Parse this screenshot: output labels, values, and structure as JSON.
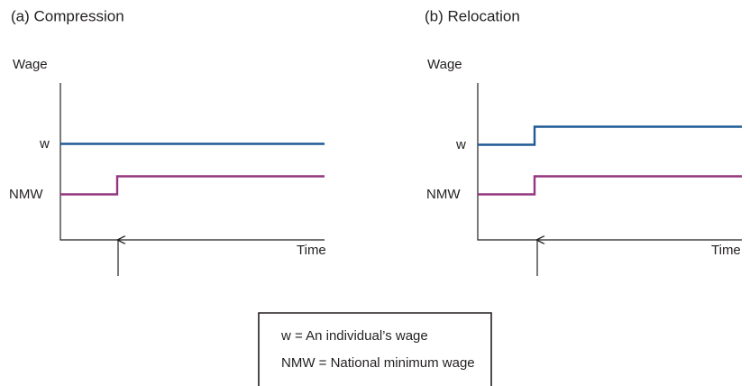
{
  "panels": [
    {
      "title": "(a) Compression",
      "y_axis_label": "Wage",
      "x_axis_label": "Time",
      "line_labels": [
        "w",
        "NMW"
      ]
    },
    {
      "title": "(b) Relocation",
      "y_axis_label": "Wage",
      "x_axis_label": "Time",
      "line_labels": [
        "w",
        "NMW"
      ]
    }
  ],
  "legend": [
    "w = An individual’s wage",
    "NMW = National minimum wage"
  ]
}
